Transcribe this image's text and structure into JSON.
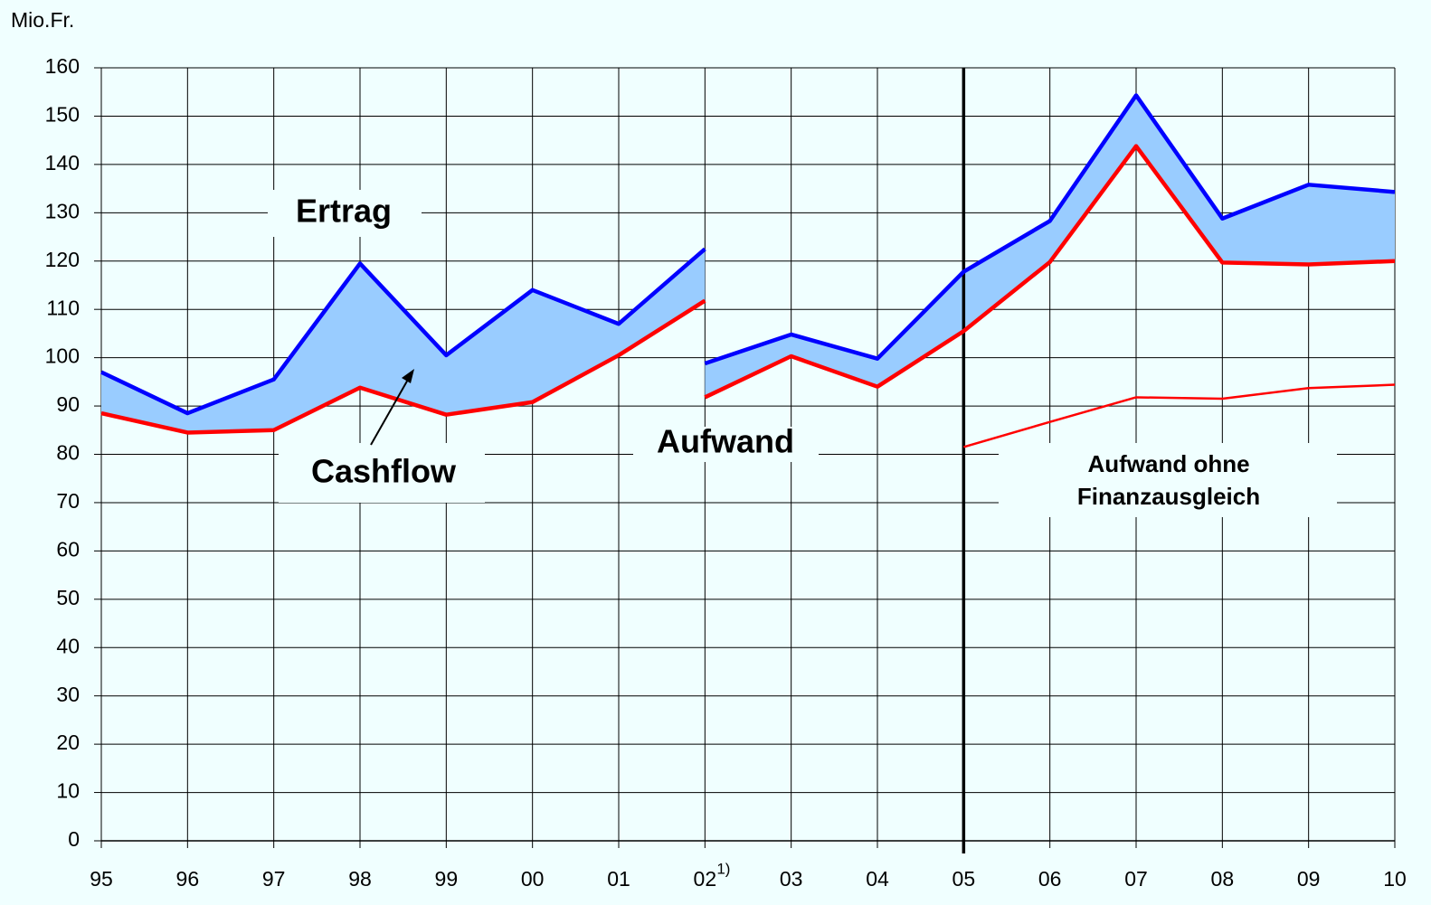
{
  "chart_data": {
    "type": "line",
    "y_unit": "Mio.Fr.",
    "categories": [
      "95",
      "96",
      "97",
      "98",
      "99",
      "00",
      "01",
      "02",
      "03",
      "04",
      "05",
      "06",
      "07",
      "08",
      "09",
      "10"
    ],
    "category_note": {
      "category": "02",
      "text": "1)"
    },
    "divider": "05",
    "ylim": [
      0,
      160
    ],
    "yticks": [
      0,
      10,
      20,
      30,
      40,
      50,
      60,
      70,
      80,
      90,
      100,
      110,
      120,
      130,
      140,
      150,
      160
    ],
    "grid": true,
    "series": [
      {
        "name": "Ertrag",
        "color": "#0000ff",
        "segments": [
          {
            "categories": [
              "95",
              "96",
              "97",
              "98",
              "99",
              "00",
              "01",
              "02"
            ],
            "values": [
              97,
              88.5,
              95.5,
              119.5,
              100.5,
              114,
              107,
              122.5
            ]
          },
          {
            "categories": [
              "02",
              "03",
              "04",
              "05",
              "06",
              "07",
              "08",
              "09",
              "10"
            ],
            "values": [
              98.8,
              104.8,
              99.8,
              117.8,
              128.3,
              154.3,
              128.8,
              135.8,
              134.3
            ]
          }
        ]
      },
      {
        "name": "Aufwand",
        "color": "#ff0000",
        "segments": [
          {
            "categories": [
              "95",
              "96",
              "97",
              "98",
              "99",
              "00",
              "01",
              "02"
            ],
            "values": [
              88.5,
              84.5,
              85,
              93.8,
              88.2,
              90.8,
              100.5,
              111.8
            ]
          },
          {
            "categories": [
              "02",
              "03",
              "04",
              "05",
              "06",
              "07",
              "08",
              "09",
              "10"
            ],
            "values": [
              91.8,
              100.3,
              94,
              105.5,
              119.8,
              143.8,
              119.7,
              119.3,
              120
            ]
          }
        ]
      },
      {
        "name": "Aufwand ohne Finanzausgleich",
        "color": "#ff0000",
        "segments": [
          {
            "categories": [
              "05",
              "06",
              "07",
              "08",
              "09",
              "10"
            ],
            "values": [
              81.5,
              86.7,
              91.8,
              91.5,
              93.7,
              94.4
            ]
          }
        ]
      }
    ],
    "area": {
      "name": "Cashflow",
      "color": "#99ccff"
    }
  }
}
